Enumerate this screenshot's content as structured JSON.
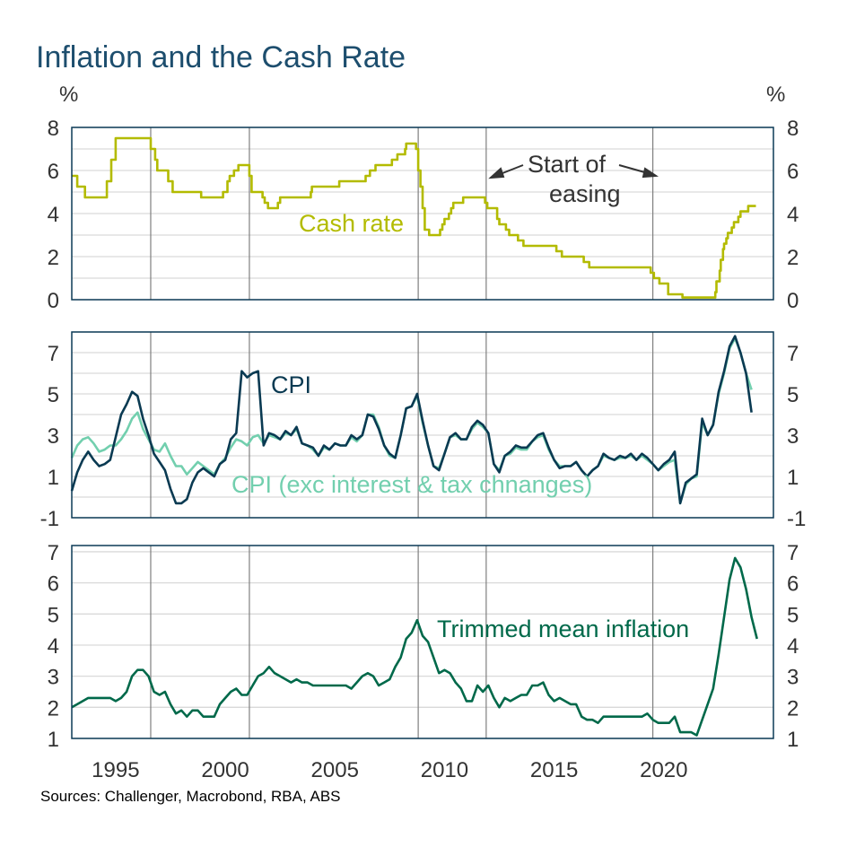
{
  "chart_data": [
    {
      "type": "line",
      "title": "Inflation and the Cash Rate",
      "ylabel_left": "%",
      "ylabel_right": "%",
      "ylim": [
        0,
        8
      ],
      "yticks": [
        "8",
        "6",
        "4",
        "2",
        "0"
      ],
      "yticks_values": [
        8,
        6,
        4,
        2,
        0
      ],
      "grid": true,
      "series": [
        {
          "name": "Cash rate",
          "color": "#b3bb00",
          "step": true,
          "points": [
            [
              1993.0,
              5.75
            ],
            [
              1993.25,
              5.25
            ],
            [
              1993.6,
              4.75
            ],
            [
              1994.6,
              5.5
            ],
            [
              1994.8,
              6.5
            ],
            [
              1995.0,
              7.5
            ],
            [
              1996.6,
              7.0
            ],
            [
              1996.8,
              6.5
            ],
            [
              1996.9,
              6.0
            ],
            [
              1997.4,
              5.5
            ],
            [
              1997.6,
              5.0
            ],
            [
              1998.9,
              4.75
            ],
            [
              1999.9,
              5.0
            ],
            [
              2000.1,
              5.5
            ],
            [
              2000.2,
              5.75
            ],
            [
              2000.4,
              6.0
            ],
            [
              2000.6,
              6.25
            ],
            [
              2001.1,
              5.75
            ],
            [
              2001.2,
              5.0
            ],
            [
              2001.7,
              4.75
            ],
            [
              2001.8,
              4.5
            ],
            [
              2001.95,
              4.25
            ],
            [
              2002.4,
              4.5
            ],
            [
              2002.5,
              4.75
            ],
            [
              2003.9,
              5.0
            ],
            [
              2003.95,
              5.25
            ],
            [
              2005.2,
              5.5
            ],
            [
              2006.4,
              5.75
            ],
            [
              2006.6,
              6.0
            ],
            [
              2006.85,
              6.25
            ],
            [
              2007.6,
              6.5
            ],
            [
              2007.85,
              6.75
            ],
            [
              2008.2,
              7.0
            ],
            [
              2008.25,
              7.25
            ],
            [
              2008.7,
              7.0
            ],
            [
              2008.8,
              6.0
            ],
            [
              2008.9,
              5.25
            ],
            [
              2009.0,
              4.25
            ],
            [
              2009.1,
              3.25
            ],
            [
              2009.3,
              3.0
            ],
            [
              2009.8,
              3.25
            ],
            [
              2009.9,
              3.5
            ],
            [
              2010.0,
              3.75
            ],
            [
              2010.2,
              4.0
            ],
            [
              2010.3,
              4.25
            ],
            [
              2010.4,
              4.5
            ],
            [
              2010.85,
              4.75
            ],
            [
              2011.85,
              4.5
            ],
            [
              2011.95,
              4.25
            ],
            [
              2012.4,
              3.75
            ],
            [
              2012.5,
              3.5
            ],
            [
              2012.8,
              3.25
            ],
            [
              2012.95,
              3.0
            ],
            [
              2013.35,
              2.75
            ],
            [
              2013.6,
              2.5
            ],
            [
              2015.1,
              2.25
            ],
            [
              2015.35,
              2.0
            ],
            [
              2016.35,
              1.75
            ],
            [
              2016.6,
              1.5
            ],
            [
              2019.4,
              1.25
            ],
            [
              2019.55,
              1.0
            ],
            [
              2019.8,
              0.75
            ],
            [
              2020.2,
              0.25
            ],
            [
              2020.85,
              0.1
            ],
            [
              2022.35,
              0.35
            ],
            [
              2022.4,
              0.85
            ],
            [
              2022.55,
              1.35
            ],
            [
              2022.6,
              1.85
            ],
            [
              2022.7,
              2.35
            ],
            [
              2022.75,
              2.6
            ],
            [
              2022.85,
              2.85
            ],
            [
              2022.92,
              3.1
            ],
            [
              2023.1,
              3.35
            ],
            [
              2023.2,
              3.6
            ],
            [
              2023.4,
              3.85
            ],
            [
              2023.5,
              4.1
            ],
            [
              2023.85,
              4.35
            ],
            [
              2024.2,
              4.35
            ]
          ]
        }
      ],
      "annotations": {
        "series_label": "Cash rate",
        "easing_line1": "Start of",
        "easing_line2": "easing"
      }
    },
    {
      "type": "line",
      "ylim": [
        -1,
        8
      ],
      "yticks": [
        "7",
        "5",
        "3",
        "1",
        "-1"
      ],
      "yticks_values": [
        7,
        5,
        3,
        1,
        -1
      ],
      "grid": true,
      "x_start": 1993.0,
      "x_step": 0.25,
      "series": [
        {
          "name": "CPI (exc interest & tax chnanges)",
          "color": "#72cfae",
          "values": [
            1.9,
            2.5,
            2.8,
            2.9,
            2.6,
            2.2,
            2.3,
            2.5,
            2.5,
            2.8,
            3.2,
            3.8,
            4.1,
            3.3,
            2.8,
            2.3,
            2.2,
            2.6,
            2.0,
            1.5,
            1.5,
            1.1,
            1.4,
            1.7,
            1.5,
            1.3,
            1.1,
            1.6,
            1.9,
            2.4,
            2.8,
            2.7,
            2.5,
            2.9,
            3.0,
            2.6,
            3.0,
            2.9,
            2.8,
            3.1,
            3.0,
            3.3,
            2.6,
            2.5,
            2.3,
            2.0,
            2.4,
            2.3,
            2.6,
            2.5,
            2.5,
            2.9,
            2.7,
            3.0,
            4.0,
            4.0,
            3.4,
            2.5,
            2.0,
            1.9,
            3.0,
            4.3,
            4.4,
            4.9,
            3.6,
            2.5,
            1.5,
            1.4,
            2.1,
            2.9,
            3.0,
            2.8,
            2.8,
            3.3,
            3.6,
            3.4,
            3.1,
            1.6,
            1.3,
            2.0,
            2.1,
            2.4,
            2.3,
            2.3,
            2.7,
            2.9,
            3.0,
            2.3,
            1.8,
            1.5,
            1.5,
            1.5,
            1.7,
            1.3,
            1.0,
            1.3,
            1.5,
            2.0,
            1.9,
            1.8,
            1.9,
            1.9,
            2.0,
            1.8,
            2.0,
            1.8,
            1.6,
            1.3,
            1.5,
            1.7,
            1.8,
            -0.3,
            0.6,
            0.9,
            1.0,
            3.6,
            3.0,
            3.5,
            5.0,
            6.0,
            7.2,
            7.7,
            7.0,
            6.0,
            5.2
          ]
        },
        {
          "name": "CPI",
          "color": "#0a3a52",
          "values": [
            0.3,
            1.2,
            1.8,
            2.2,
            1.8,
            1.5,
            1.6,
            1.8,
            2.9,
            4.0,
            4.5,
            5.1,
            4.9,
            3.8,
            3.0,
            2.1,
            1.7,
            1.3,
            0.4,
            -0.3,
            -0.3,
            -0.1,
            0.7,
            1.2,
            1.4,
            1.2,
            1.0,
            1.6,
            1.8,
            2.8,
            3.1,
            6.1,
            5.8,
            6.0,
            6.1,
            2.5,
            3.1,
            3.0,
            2.8,
            3.2,
            3.0,
            3.4,
            2.6,
            2.5,
            2.4,
            2.0,
            2.5,
            2.3,
            2.6,
            2.5,
            2.5,
            3.0,
            2.8,
            3.0,
            4.0,
            3.9,
            3.3,
            2.5,
            2.1,
            1.9,
            3.0,
            4.3,
            4.4,
            5.0,
            3.7,
            2.5,
            1.5,
            1.3,
            2.1,
            2.9,
            3.1,
            2.8,
            2.8,
            3.4,
            3.7,
            3.5,
            3.1,
            1.6,
            1.2,
            2.0,
            2.2,
            2.5,
            2.4,
            2.4,
            2.7,
            3.0,
            3.1,
            2.4,
            1.8,
            1.4,
            1.5,
            1.5,
            1.7,
            1.3,
            1.0,
            1.3,
            1.5,
            2.1,
            1.9,
            1.8,
            2.0,
            1.9,
            2.1,
            1.8,
            2.1,
            1.9,
            1.6,
            1.3,
            1.6,
            1.8,
            2.2,
            -0.3,
            0.7,
            0.9,
            1.1,
            3.8,
            3.0,
            3.5,
            5.1,
            6.1,
            7.3,
            7.8,
            7.0,
            6.0,
            4.1
          ]
        }
      ],
      "annotations": {
        "cpi_label": "CPI",
        "cpi_exc_label": "CPI (exc interest & tax chnanges)"
      }
    },
    {
      "type": "line",
      "ylim": [
        1,
        7.2
      ],
      "yticks": [
        "7",
        "6",
        "5",
        "4",
        "3",
        "2",
        "1"
      ],
      "yticks_values": [
        7,
        6,
        5,
        4,
        3,
        2,
        1
      ],
      "grid": true,
      "x_start": 1993.0,
      "x_step": 0.25,
      "series": [
        {
          "name": "Trimmed mean inflation",
          "color": "#00694a",
          "values": [
            2.0,
            2.1,
            2.2,
            2.3,
            2.3,
            2.3,
            2.3,
            2.3,
            2.2,
            2.3,
            2.5,
            3.0,
            3.2,
            3.2,
            3.0,
            2.5,
            2.4,
            2.5,
            2.1,
            1.8,
            1.9,
            1.7,
            1.9,
            1.9,
            1.7,
            1.7,
            1.7,
            2.1,
            2.3,
            2.5,
            2.6,
            2.4,
            2.4,
            2.7,
            3.0,
            3.1,
            3.3,
            3.1,
            3.0,
            2.9,
            2.8,
            2.9,
            2.8,
            2.8,
            2.7,
            2.7,
            2.7,
            2.7,
            2.7,
            2.7,
            2.7,
            2.6,
            2.8,
            3.0,
            3.1,
            3.0,
            2.7,
            2.8,
            2.9,
            3.3,
            3.6,
            4.2,
            4.4,
            4.8,
            4.3,
            4.1,
            3.6,
            3.1,
            3.2,
            3.1,
            2.8,
            2.6,
            2.2,
            2.2,
            2.7,
            2.5,
            2.7,
            2.3,
            2.0,
            2.3,
            2.2,
            2.3,
            2.4,
            2.4,
            2.7,
            2.7,
            2.8,
            2.4,
            2.2,
            2.3,
            2.2,
            2.1,
            2.1,
            1.7,
            1.6,
            1.6,
            1.5,
            1.7,
            1.7,
            1.7,
            1.7,
            1.7,
            1.7,
            1.7,
            1.7,
            1.8,
            1.6,
            1.5,
            1.5,
            1.5,
            1.7,
            1.2,
            1.2,
            1.2,
            1.1,
            1.6,
            2.1,
            2.6,
            3.7,
            4.9,
            6.1,
            6.8,
            6.5,
            5.8,
            4.9,
            4.2
          ]
        }
      ],
      "annotations": {
        "series_label": "Trimmed mean inflation"
      }
    }
  ],
  "xaxis": {
    "xlim": [
      1993.0,
      2025.0
    ],
    "ticks": [
      "1995",
      "2000",
      "2005",
      "2010",
      "2015",
      "2020"
    ],
    "tick_values": [
      1995,
      2000,
      2005,
      2010,
      2015,
      2020
    ]
  },
  "event_lines": [
    1996.6,
    2001.1,
    2008.8,
    2011.9,
    2019.5
  ],
  "title": "Inflation and the Cash Rate",
  "unit_left": "%",
  "unit_right": "%",
  "source": "Sources: Challenger, Macrobond, RBA, ABS",
  "colors": {
    "title": "#1d4e6e",
    "frame": "#0b3a56",
    "grid": "#d9d9d9",
    "event_line": "#7f7f7f"
  }
}
